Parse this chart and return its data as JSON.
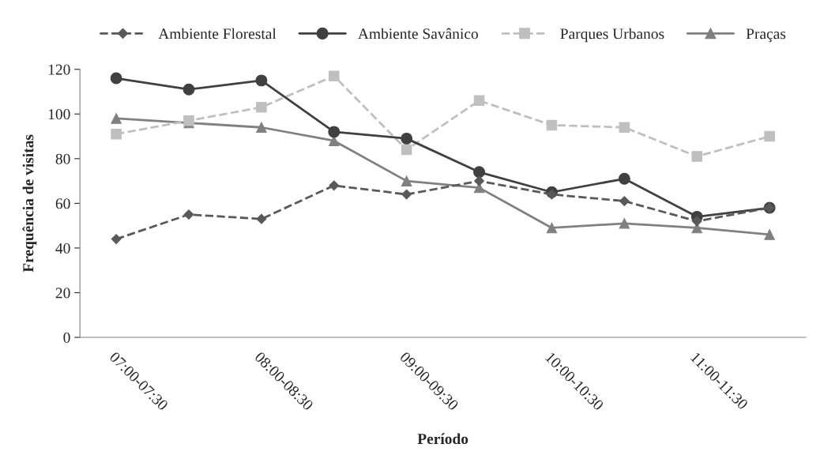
{
  "chart_data": {
    "type": "line",
    "xlabel": "Período",
    "ylabel": "Frequência de visitas",
    "categories": [
      "07:00-07:30",
      null,
      "08:00-08:30",
      null,
      "09:00-09:30",
      null,
      "10:00-10:30",
      null,
      "11:00-11:30",
      null
    ],
    "series": [
      {
        "name": "Ambiente Florestal",
        "color": "#595959",
        "marker": "diamond",
        "line_style": "dashed",
        "values": [
          44,
          55,
          53,
          68,
          64,
          70,
          64,
          61,
          52,
          58
        ]
      },
      {
        "name": "Ambiente Savânico",
        "color": "#404040",
        "marker": "circle",
        "line_style": "solid",
        "values": [
          116,
          111,
          115,
          92,
          89,
          74,
          65,
          71,
          54,
          58
        ]
      },
      {
        "name": "Parques Urbanos",
        "color": "#bfbfbf",
        "marker": "square",
        "line_style": "dashed",
        "values": [
          91,
          97,
          103,
          117,
          84,
          106,
          95,
          94,
          81,
          90
        ]
      },
      {
        "name": "Praças",
        "color": "#808080",
        "marker": "triangle",
        "line_style": "solid",
        "values": [
          98,
          96,
          94,
          88,
          70,
          67,
          49,
          51,
          49,
          46
        ]
      }
    ],
    "ylim": [
      0,
      120
    ],
    "yticks": [
      0,
      20,
      40,
      60,
      80,
      100,
      120
    ],
    "grid": false,
    "legend": "top"
  }
}
